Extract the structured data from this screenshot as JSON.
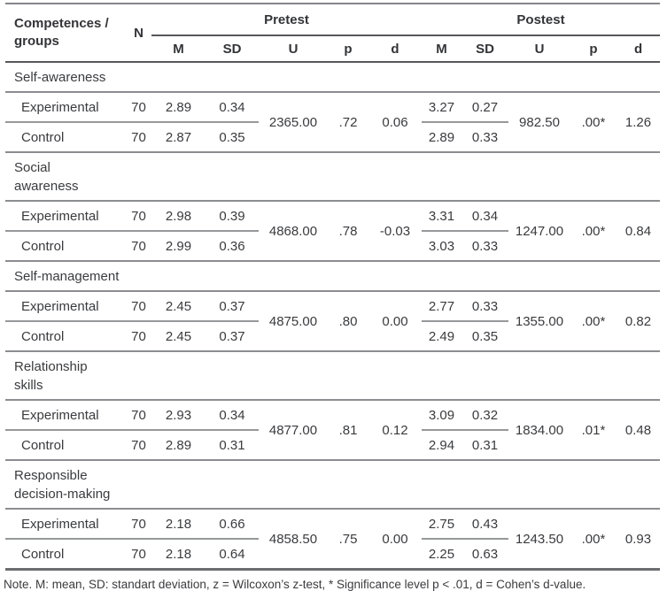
{
  "colors": {
    "rule_dark": "#55575b",
    "rule_gray": "#8b8d90",
    "text": "#3a3b3e",
    "background": "#ffffff"
  },
  "table": {
    "header": {
      "competences": "Competences / groups",
      "n": "N",
      "pretest": "Pretest",
      "postest": "Postest",
      "subcols": [
        "M",
        "SD",
        "U",
        "p",
        "d"
      ]
    },
    "sections": [
      {
        "name_lines": [
          "Self-awareness"
        ],
        "rows": [
          {
            "group": "Experimental",
            "n": "70",
            "pre_m": "2.89",
            "pre_sd": "0.34",
            "post_m": "3.27",
            "post_sd": "0.27"
          },
          {
            "group": "Control",
            "n": "70",
            "pre_m": "2.87",
            "pre_sd": "0.35",
            "post_m": "2.89",
            "post_sd": "0.33"
          }
        ],
        "pre_u": "2365.00",
        "pre_p": ".72",
        "pre_d": "0.06",
        "post_u": "982.50",
        "post_p": ".00*",
        "post_d": "1.26"
      },
      {
        "name_lines": [
          "Social",
          "awareness"
        ],
        "rows": [
          {
            "group": "Experimental",
            "n": "70",
            "pre_m": "2.98",
            "pre_sd": "0.39",
            "post_m": "3.31",
            "post_sd": "0.34"
          },
          {
            "group": "Control",
            "n": "70",
            "pre_m": "2.99",
            "pre_sd": "0.36",
            "post_m": "3.03",
            "post_sd": "0.33"
          }
        ],
        "pre_u": "4868.00",
        "pre_p": ".78",
        "pre_d": "-0.03",
        "post_u": "1247.00",
        "post_p": ".00*",
        "post_d": "0.84"
      },
      {
        "name_lines": [
          "Self-management"
        ],
        "rows": [
          {
            "group": "Experimental",
            "n": "70",
            "pre_m": "2.45",
            "pre_sd": "0.37",
            "post_m": "2.77",
            "post_sd": "0.33"
          },
          {
            "group": "Control",
            "n": "70",
            "pre_m": "2.45",
            "pre_sd": "0.37",
            "post_m": "2.49",
            "post_sd": "0.35"
          }
        ],
        "pre_u": "4875.00",
        "pre_p": ".80",
        "pre_d": "0.00",
        "post_u": "1355.00",
        "post_p": ".00*",
        "post_d": "0.82"
      },
      {
        "name_lines": [
          "Relationship",
          "skills"
        ],
        "rows": [
          {
            "group": "Experimental",
            "n": "70",
            "pre_m": "2.93",
            "pre_sd": "0.34",
            "post_m": "3.09",
            "post_sd": "0.32"
          },
          {
            "group": "Control",
            "n": "70",
            "pre_m": "2.89",
            "pre_sd": "0.31",
            "post_m": "2.94",
            "post_sd": "0.31"
          }
        ],
        "pre_u": "4877.00",
        "pre_p": ".81",
        "pre_d": "0.12",
        "post_u": "1834.00",
        "post_p": ".01*",
        "post_d": "0.48"
      },
      {
        "name_lines": [
          "Responsible",
          "decision-making"
        ],
        "rows": [
          {
            "group": "Experimental",
            "n": "70",
            "pre_m": "2.18",
            "pre_sd": "0.66",
            "post_m": "2.75",
            "post_sd": "0.43"
          },
          {
            "group": "Control",
            "n": "70",
            "pre_m": "2.18",
            "pre_sd": "0.64",
            "post_m": "2.25",
            "post_sd": "0.63"
          }
        ],
        "pre_u": "4858.50",
        "pre_p": ".75",
        "pre_d": "0.00",
        "post_u": "1243.50",
        "post_p": ".00*",
        "post_d": "0.93"
      }
    ],
    "note": "Note. M: mean, SD: standart deviation, z = Wilcoxon’s z-test, * Significance level p < .01, d = Cohen’s d-value."
  }
}
